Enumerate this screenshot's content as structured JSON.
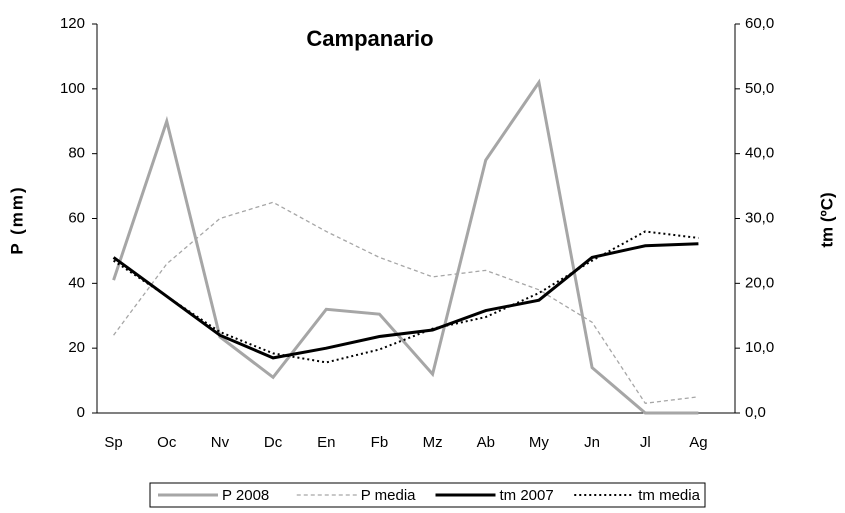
{
  "chart_data": {
    "type": "line",
    "title": "Campanario",
    "y_label": "P (mm)",
    "y2_label": "tm (ºC)",
    "categories": [
      "Sp",
      "Oc",
      "Nv",
      "Dc",
      "En",
      "Fb",
      "Mz",
      "Ab",
      "My",
      "Jn",
      "Jl",
      "Ag"
    ],
    "series": [
      {
        "name": "P 2008",
        "color": "#a6a6a6",
        "width": 3,
        "style": "solid",
        "axis": "y",
        "values": [
          41,
          90,
          23.5,
          11,
          32,
          30.5,
          12,
          78,
          102,
          14,
          0,
          0
        ]
      },
      {
        "name": "P media",
        "color": "#a6a6a6",
        "width": 1.3,
        "style": "dashed",
        "axis": "y",
        "values": [
          24,
          46,
          60,
          65,
          56,
          48,
          42,
          44,
          38,
          28,
          3,
          5
        ]
      },
      {
        "name": "tm 2007",
        "color": "#000000",
        "width": 3,
        "style": "solid",
        "axis": "y2",
        "values": [
          24,
          18,
          12,
          8.5,
          10,
          11.8,
          12.8,
          15.8,
          17.4,
          24,
          25.8,
          26.1
        ]
      },
      {
        "name": "tm media",
        "color": "#000000",
        "width": 2,
        "style": "dotted",
        "axis": "y2",
        "values": [
          23.5,
          18,
          12.5,
          9.2,
          7.8,
          9.8,
          13,
          14.8,
          18.5,
          23.5,
          28,
          27
        ]
      }
    ],
    "ylim": [
      0,
      120
    ],
    "yticks": [
      0,
      20,
      40,
      60,
      80,
      100,
      120
    ],
    "y2lim": [
      0,
      60
    ],
    "y2ticks": [
      {
        "value": 0,
        "label": "0,0"
      },
      {
        "value": 10,
        "label": "10,0"
      },
      {
        "value": 20,
        "label": "20,0"
      },
      {
        "value": 30,
        "label": "30,0"
      },
      {
        "value": 40,
        "label": "40,0"
      },
      {
        "value": 50,
        "label": "50,0"
      },
      {
        "value": 60,
        "label": "60,0"
      }
    ],
    "grid": false,
    "legend": "bottom"
  }
}
